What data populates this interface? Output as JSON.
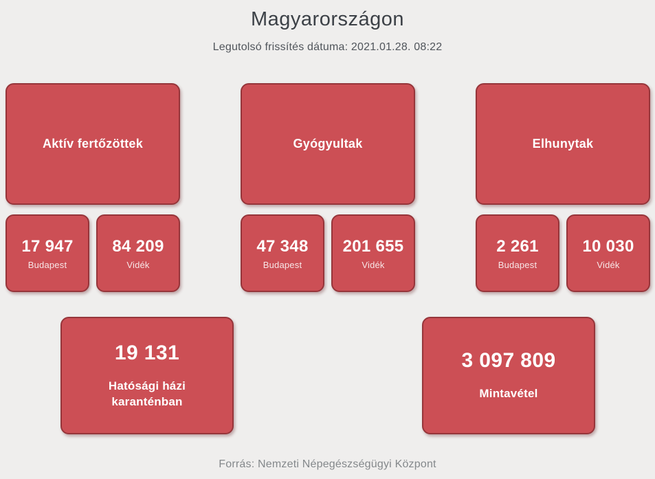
{
  "page": {
    "title": "Magyarországon",
    "subtitle": "Legutolsó frissítés dátuma: 2021.01.28. 08:22",
    "footer": "Forrás: Nemzeti Népegészségügyi Központ"
  },
  "colors": {
    "card_fill": "#cc4f55",
    "card_border": "#96353a",
    "background": "#efeeed",
    "title_text": "#3c4147",
    "footer_text": "#84888b"
  },
  "stats": [
    {
      "label": "Aktív fertőzöttek",
      "budapest": {
        "value": "17 947",
        "label": "Budapest"
      },
      "videk": {
        "value": "84 209",
        "label": "Vidék"
      }
    },
    {
      "label": "Gyógyultak",
      "budapest": {
        "value": "47 348",
        "label": "Budapest"
      },
      "videk": {
        "value": "201 655",
        "label": "Vidék"
      }
    },
    {
      "label": "Elhunytak",
      "budapest": {
        "value": "2 261",
        "label": "Budapest"
      },
      "videk": {
        "value": "10 030",
        "label": "Vidék"
      }
    }
  ],
  "summary": [
    {
      "value": "19 131",
      "label": "Hatósági házi karanténban"
    },
    {
      "value": "3 097 809",
      "label": "Mintavétel"
    }
  ]
}
